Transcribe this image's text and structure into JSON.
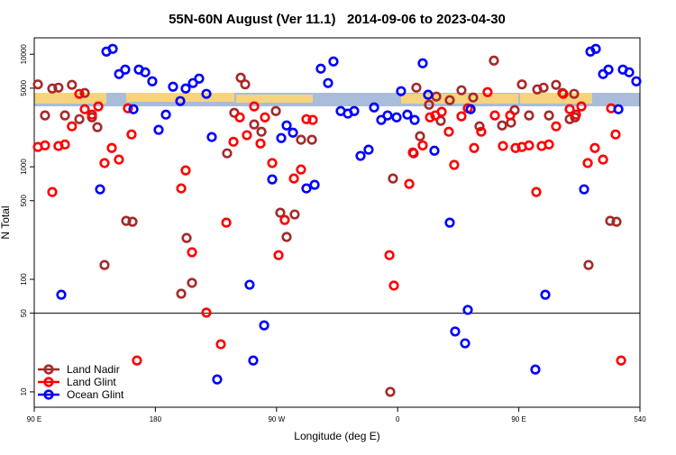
{
  "chart_data": {
    "type": "scatter",
    "title": "55N-60N August (Ver 11.1)   2014-09-06 to 2023-04-30",
    "xlabel": "Longitude (deg E)",
    "ylabel": "N Total",
    "xlim": [
      90,
      540
    ],
    "xticks": [
      {
        "value": 90,
        "label": "90 E"
      },
      180,
      {
        "value": 270,
        "label": "90 W"
      },
      {
        "value": 360,
        "label": "0"
      },
      {
        "value": 450,
        "label": "90 E"
      },
      540
    ],
    "ylim": [
      7.3,
      14000
    ],
    "yscale": "log",
    "yticks": [
      10,
      50,
      100,
      500,
      1000,
      5000,
      10000
    ],
    "hline": 50,
    "legend": "bottom-left",
    "series": [
      {
        "name": "Land Nadir",
        "color": "#a52a2a",
        "x": [
          92.7,
          98,
          103.4,
          108,
          112.8,
          118,
          123.5,
          127.5,
          132.9,
          136.9,
          142.2,
          158.3,
          163,
          199.2,
          203.2,
          207.2,
          233.3,
          238.6,
          243.4,
          246.7,
          253.4,
          258.8,
          269.5,
          272.8,
          277.5,
          283.5,
          288.2,
          296.3,
          356.5,
          354.5,
          371.9,
          373.9,
          376.6,
          383.3,
          388.7,
          392,
          398.7,
          407.4,
          416.1,
          420.8,
          431.5,
          437.6,
          444.2,
          446.9,
          452.3,
          457.6,
          463.7,
          468.4,
          472.4,
          477.7,
          482.4,
          487.8,
          491.1,
          491.8,
          501.8,
          517.9,
          522.6
        ],
        "values": [
          5400,
          2860,
          4960,
          5050,
          2860,
          5350,
          2650,
          4530,
          2750,
          2250,
          134,
          331,
          325,
          74.5,
          233,
          93,
          1318,
          3020,
          6190,
          5400,
          2380,
          2050,
          3130,
          391,
          238,
          377,
          1740,
          1740,
          787,
          10,
          1318,
          5050,
          1870,
          3560,
          4210,
          2560,
          3910,
          4790,
          4130,
          2290,
          8790,
          2330,
          2470,
          3190,
          5400,
          2860,
          4870,
          5050,
          2860,
          5350,
          4530,
          2650,
          4450,
          2750,
          134,
          331,
          325
        ]
      },
      {
        "name": "Land Glint",
        "color": "#ff0000",
        "x": [
          92.7,
          98,
          103.4,
          108,
          112.8,
          118,
          123.5,
          127.5,
          132.9,
          137.6,
          142.2,
          147.6,
          152.9,
          159.6,
          162.3,
          166.3,
          199.2,
          202.5,
          207.2,
          217.9,
          228.6,
          232.7,
          238,
          242.7,
          248,
          253.4,
          258.1,
          261.4,
          266.8,
          271.5,
          276.1,
          282.9,
          288.2,
          292.2,
          296.9,
          353.9,
          357.2,
          368.6,
          371.3,
          378.6,
          384,
          388,
          392.7,
          398,
          402,
          407.4,
          412.1,
          416.8,
          422.1,
          426.8,
          432.2,
          438.2,
          443.6,
          447.6,
          452.3,
          457.6,
          463,
          467,
          472.4,
          477.7,
          483.1,
          487.8,
          492.5,
          496.5,
          501.2,
          506.5,
          512.6,
          518.6,
          521.9,
          526
        ],
        "values": [
          1500,
          1550,
          597,
          1530,
          1580,
          2290,
          4450,
          3250,
          2910,
          3440,
          1080,
          1470,
          1160,
          3310,
          1940,
          19,
          643,
          929,
          174,
          50.6,
          26.5,
          319,
          1670,
          2750,
          1910,
          3440,
          1610,
          2750,
          1080,
          164,
          337,
          787,
          946,
          2650,
          2610,
          164,
          88,
          705,
          1340,
          1550,
          2750,
          2860,
          3080,
          2050,
          1040,
          2810,
          3310,
          1470,
          2050,
          4610,
          2860,
          1530,
          2860,
          1470,
          1500,
          1550,
          597,
          1530,
          1580,
          2290,
          4450,
          3250,
          2910,
          3440,
          1080,
          1470,
          1160,
          3310,
          1940,
          19
        ]
      },
      {
        "name": "Ocean Glint",
        "color": "#0000ff",
        "x": [
          110.1,
          138.9,
          143.6,
          148.3,
          153,
          157.6,
          163.7,
          167.7,
          172.4,
          177.7,
          182.4,
          187.8,
          193.1,
          198.5,
          202.5,
          207.9,
          212.5,
          217.9,
          221.9,
          225.9,
          250,
          252.7,
          260.8,
          266.8,
          273.5,
          277.5,
          282.2,
          292.2,
          298.3,
          302.9,
          308.3,
          312.3,
          317.7,
          323,
          327.7,
          332.4,
          338.4,
          342.5,
          347.8,
          352.5,
          359.2,
          362.5,
          367.2,
          372.6,
          378.6,
          382.6,
          387.3,
          398.7,
          402.7,
          410.1,
          412.1,
          414.2,
          462.3,
          469.7,
          498.5,
          503.2,
          507.2,
          512.6,
          516.6,
          524,
          527.3,
          532,
          537.3
        ],
        "values": [
          73,
          631,
          10570,
          11170,
          6670,
          7310,
          3250,
          7310,
          6920,
          5750,
          2130,
          2910,
          5150,
          3840,
          4960,
          5550,
          6080,
          4450,
          1840,
          12.9,
          89.5,
          19,
          39,
          773,
          1800,
          2330,
          2010,
          643,
          692,
          7450,
          5550,
          8630,
          3130,
          2970,
          3130,
          1250,
          1420,
          3370,
          2610,
          2860,
          2750,
          4700,
          2910,
          2610,
          8320,
          4370,
          1390,
          319,
          34.4,
          27,
          53.5,
          3250,
          15.8,
          73,
          631,
          10570,
          11170,
          6670,
          7310,
          3250,
          7310,
          6920,
          5750
        ]
      }
    ]
  }
}
